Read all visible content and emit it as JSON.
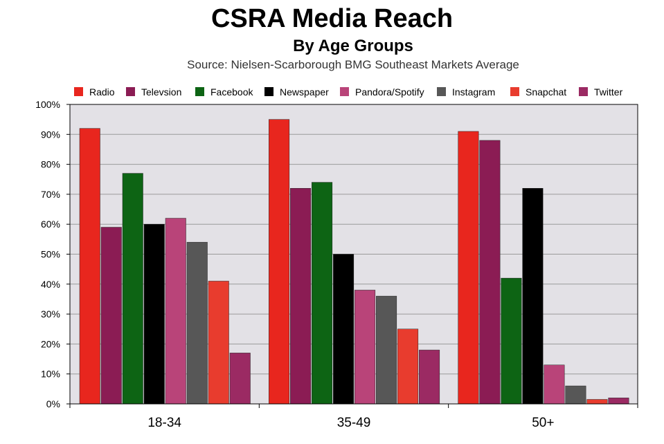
{
  "chart_data": {
    "type": "bar",
    "title": "CSRA Media Reach",
    "subtitle": "By Age Groups",
    "source": "Source: Nielsen-Scarborough BMG Southeast Markets Average",
    "categories": [
      "18-34",
      "35-49",
      "50+"
    ],
    "y_ticks": [
      "0%",
      "10%",
      "20%",
      "30%",
      "40%",
      "50%",
      "60%",
      "70%",
      "80%",
      "90%",
      "100%"
    ],
    "ylim": [
      0,
      100
    ],
    "grid": true,
    "legend_position": "top",
    "background_color": "#e3e1e6",
    "series": [
      {
        "name": "Radio",
        "color": "#e8261e",
        "values": [
          92,
          95,
          91
        ]
      },
      {
        "name": "Televsion",
        "color": "#8b1c54",
        "values": [
          59,
          72,
          88
        ]
      },
      {
        "name": "Facebook",
        "color": "#0d6414",
        "values": [
          77,
          74,
          42
        ]
      },
      {
        "name": "Newspaper",
        "color": "#000000",
        "values": [
          60,
          50,
          72
        ]
      },
      {
        "name": "Pandora/Spotify",
        "color": "#b94479",
        "values": [
          62,
          38,
          13
        ]
      },
      {
        "name": "Instagram",
        "color": "#575757",
        "values": [
          54,
          36,
          6
        ]
      },
      {
        "name": "Snapchat",
        "color": "#e83c2e",
        "values": [
          41,
          25,
          1.5
        ]
      },
      {
        "name": "Twitter",
        "color": "#9b2a63",
        "values": [
          17,
          18,
          2
        ]
      }
    ]
  }
}
